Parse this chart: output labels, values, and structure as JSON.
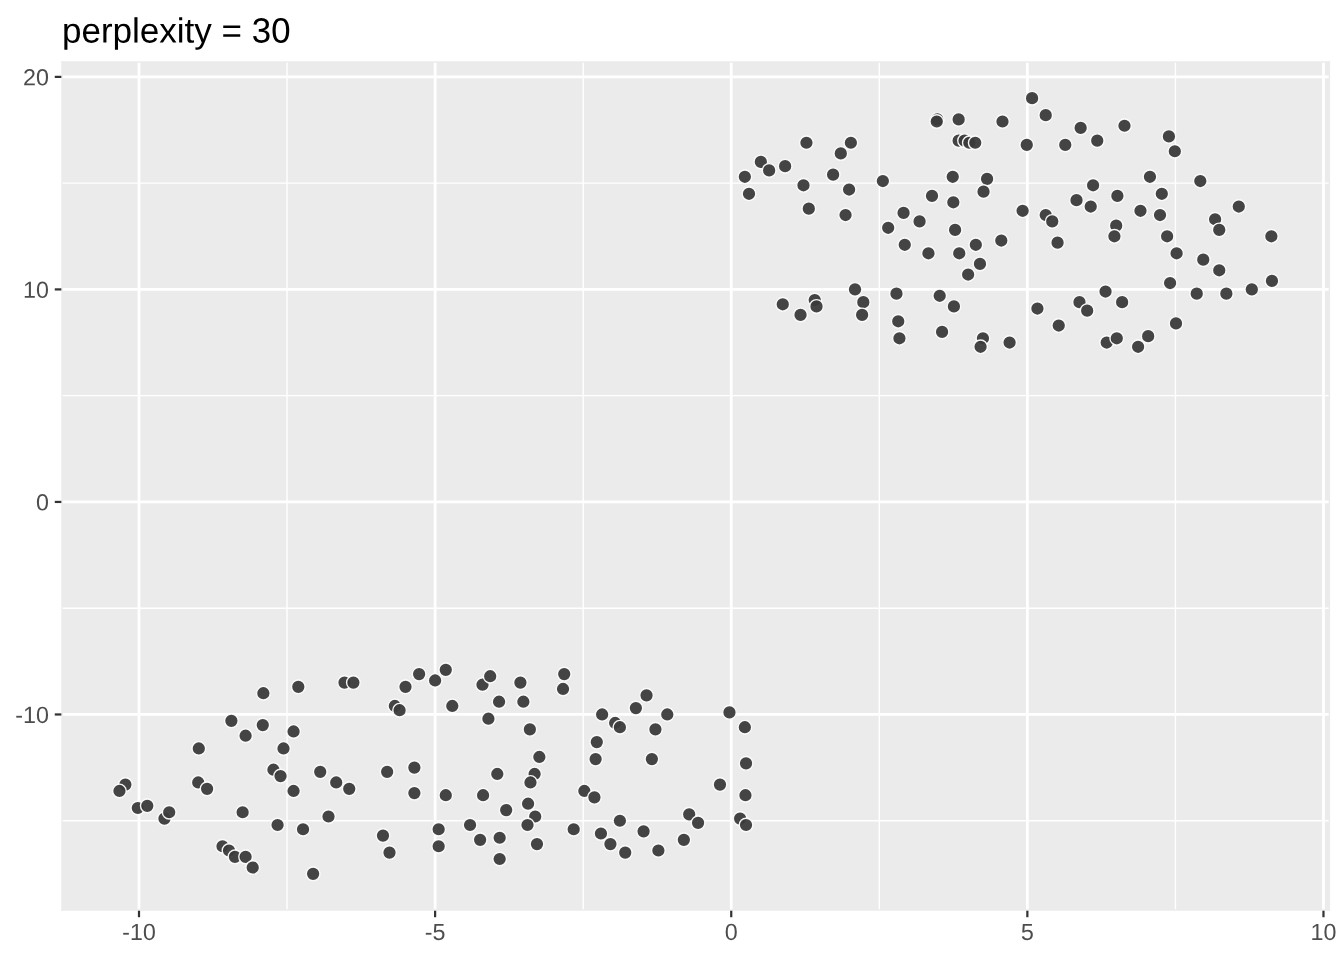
{
  "chart_data": {
    "type": "scatter",
    "title": "perplexity = 30",
    "color": "#3b3b3b",
    "marker": "circle",
    "grid": true,
    "xlim": [
      -11.3,
      10.1
    ],
    "ylim": [
      -19.2,
      20.7
    ],
    "xticks": [
      -10,
      {
        "value": -7.5,
        "label": null
      },
      -5,
      {
        "value": -2.5,
        "label": null
      },
      0,
      {
        "value": 2.5,
        "label": null
      },
      5,
      {
        "value": 7.5,
        "label": null
      },
      10
    ],
    "yticks": [
      {
        "value": -15,
        "label": null
      },
      -10,
      {
        "value": -5,
        "label": null
      },
      0,
      {
        "value": 5,
        "label": null
      },
      10,
      {
        "value": 15,
        "label": null
      },
      20
    ],
    "x": [
      0.23,
      0.3,
      0.5,
      0.64,
      0.91,
      1.27,
      1.22,
      1.31,
      0.87,
      1.17,
      1.41,
      1.44,
      1.72,
      1.85,
      2.02,
      1.99,
      1.93,
      2.09,
      2.23,
      2.21,
      2.56,
      2.65,
      2.91,
      2.93,
      2.79,
      2.82,
      2.84,
      3.18,
      3.33,
      3.39,
      3.48,
      3.47,
      3.52,
      3.56,
      3.74,
      3.75,
      3.78,
      3.85,
      3.84,
      3.84,
      3.94,
      4.02,
      4.12,
      4.0,
      4.13,
      4.2,
      4.32,
      4.26,
      4.56,
      4.58,
      4.25,
      4.21,
      4.7,
      4.99,
      5.08,
      4.92,
      5.17,
      3.76,
      5.31,
      5.64,
      5.9,
      6.18,
      6.64,
      7.39,
      7.49,
      5.31,
      5.42,
      5.51,
      5.83,
      6.11,
      6.07,
      6.52,
      6.5,
      6.47,
      6.91,
      7.07,
      7.27,
      7.24,
      7.36,
      7.52,
      7.92,
      8.17,
      8.24,
      8.57,
      9.12,
      7.97,
      8.24,
      7.41,
      7.86,
      8.36,
      8.79,
      9.13,
      6.32,
      5.88,
      6.01,
      6.6,
      5.53,
      7.51,
      6.34,
      6.51,
      6.87,
      7.04,
      -10.23,
      -10.33,
      -10.02,
      -9.86,
      -9.57,
      -9.49,
      -8.99,
      -9.0,
      -8.85,
      -8.59,
      -8.48,
      -8.38,
      -8.2,
      -8.08,
      -8.25,
      -8.44,
      -8.2,
      -7.9,
      -7.91,
      -7.39,
      -7.56,
      -7.73,
      -7.61,
      -7.39,
      -7.66,
      -7.23,
      -7.06,
      -7.31,
      -6.94,
      -6.8,
      -6.67,
      -6.45,
      -6.53,
      -6.38,
      -5.68,
      -5.6,
      -5.5,
      -5.27,
      -5.81,
      -5.35,
      -5.35,
      -5.88,
      -5.77,
      -5.0,
      -4.82,
      -4.71,
      -4.2,
      -4.07,
      -3.92,
      -4.1,
      -3.56,
      -3.51,
      -3.4,
      -3.24,
      -3.32,
      -3.39,
      -3.95,
      -4.82,
      -4.19,
      -3.8,
      -3.43,
      -3.31,
      -3.44,
      -3.28,
      -3.91,
      -3.91,
      -4.24,
      -4.41,
      -4.94,
      -4.94,
      -2.82,
      -2.84,
      -2.66,
      -2.48,
      -2.31,
      -2.29,
      -2.27,
      -2.18,
      -1.96,
      -1.88,
      -1.61,
      -1.43,
      -1.08,
      -1.28,
      -1.34,
      -1.88,
      -2.2,
      -2.04,
      -1.79,
      -1.48,
      -1.23,
      -0.8,
      -0.71,
      -0.56,
      -0.19,
      -0.03,
      0.23,
      0.25,
      0.24,
      0.15,
      0.25
    ],
    "values": [
      15.3,
      14.5,
      16.0,
      15.6,
      15.8,
      16.9,
      14.9,
      13.8,
      9.3,
      8.8,
      9.5,
      9.2,
      15.4,
      16.4,
      16.9,
      14.7,
      13.5,
      10.0,
      9.4,
      8.8,
      15.1,
      12.9,
      13.6,
      12.1,
      9.8,
      8.5,
      7.7,
      13.2,
      11.7,
      14.4,
      18.0,
      17.9,
      9.7,
      8.0,
      15.3,
      14.1,
      12.8,
      11.7,
      18.0,
      17.0,
      17.0,
      16.9,
      16.9,
      10.7,
      12.1,
      11.2,
      15.2,
      14.6,
      12.3,
      17.9,
      7.7,
      7.3,
      7.5,
      16.8,
      19.0,
      13.7,
      9.1,
      9.2,
      18.2,
      16.8,
      17.6,
      17.0,
      17.7,
      17.2,
      16.5,
      13.5,
      13.2,
      12.2,
      14.2,
      14.9,
      13.9,
      14.4,
      13.0,
      12.5,
      13.7,
      15.3,
      14.5,
      13.5,
      12.5,
      11.7,
      15.1,
      13.3,
      12.8,
      13.9,
      12.5,
      11.4,
      10.9,
      10.3,
      9.8,
      9.8,
      10.0,
      10.4,
      9.9,
      9.4,
      9.0,
      9.4,
      8.3,
      8.4,
      7.5,
      7.7,
      7.3,
      7.8,
      -13.3,
      -13.6,
      -14.4,
      -14.3,
      -14.9,
      -14.6,
      -11.6,
      -13.2,
      -13.5,
      -16.2,
      -16.4,
      -16.7,
      -16.7,
      -17.2,
      -14.6,
      -10.3,
      -11.0,
      -9.0,
      -10.5,
      -10.8,
      -11.6,
      -12.6,
      -12.9,
      -13.6,
      -15.2,
      -15.4,
      -17.5,
      -8.7,
      -12.7,
      -14.8,
      -13.2,
      -13.5,
      -8.5,
      -8.5,
      -9.6,
      -9.8,
      -8.7,
      -8.1,
      -12.7,
      -12.5,
      -13.7,
      -15.7,
      -16.5,
      -8.4,
      -7.9,
      -9.6,
      -8.6,
      -8.2,
      -9.4,
      -10.2,
      -8.5,
      -9.4,
      -10.7,
      -12.0,
      -12.8,
      -13.2,
      -12.8,
      -13.8,
      -13.8,
      -14.5,
      -14.2,
      -14.8,
      -15.2,
      -16.1,
      -15.8,
      -16.8,
      -15.9,
      -15.2,
      -15.4,
      -16.2,
      -8.1,
      -8.8,
      -15.4,
      -13.6,
      -13.9,
      -12.1,
      -11.3,
      -10.0,
      -10.4,
      -10.6,
      -9.7,
      -9.1,
      -10.0,
      -10.7,
      -12.1,
      -15.0,
      -15.6,
      -16.1,
      -16.5,
      -15.5,
      -16.4,
      -15.9,
      -14.7,
      -15.1,
      -13.3,
      -9.9,
      -10.6,
      -12.3,
      -13.8,
      -14.9,
      -15.2
    ]
  }
}
